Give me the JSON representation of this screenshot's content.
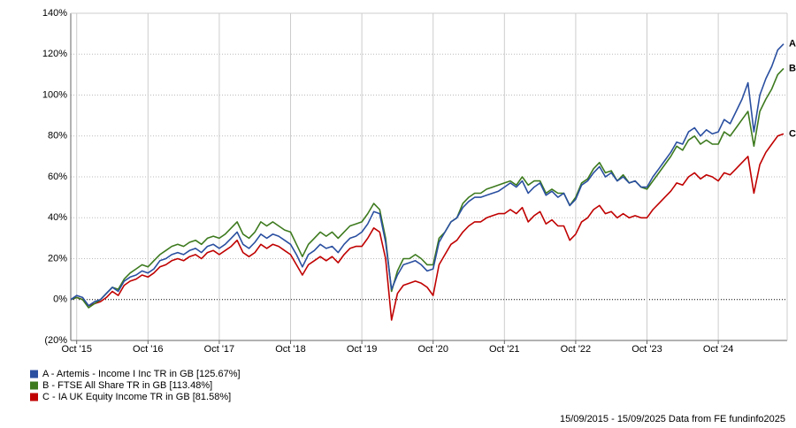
{
  "chart_data": {
    "type": "line",
    "categories": [
      null,
      "Oct '15",
      null,
      null,
      null,
      null,
      null,
      null,
      null,
      null,
      null,
      null,
      null,
      "Oct '16",
      null,
      null,
      null,
      null,
      null,
      null,
      null,
      null,
      null,
      null,
      null,
      "Oct '17",
      null,
      null,
      null,
      null,
      null,
      null,
      null,
      null,
      null,
      null,
      null,
      "Oct '18",
      null,
      null,
      null,
      null,
      null,
      null,
      null,
      null,
      null,
      null,
      null,
      "Oct '19",
      null,
      null,
      null,
      null,
      null,
      null,
      null,
      null,
      null,
      null,
      null,
      "Oct '20",
      null,
      null,
      null,
      null,
      null,
      null,
      null,
      null,
      null,
      null,
      null,
      "Oct '21",
      null,
      null,
      null,
      null,
      null,
      null,
      null,
      null,
      null,
      null,
      null,
      "Oct '22",
      null,
      null,
      null,
      null,
      null,
      null,
      null,
      null,
      null,
      null,
      null,
      "Oct '23",
      null,
      null,
      null,
      null,
      null,
      null,
      null,
      null,
      null,
      null,
      null,
      "Oct '24",
      null,
      null,
      null,
      null,
      null,
      null,
      null,
      null,
      null,
      null,
      null
    ],
    "series": [
      {
        "name": "A - Artemis - Income I Inc TR in GB [125.67%]",
        "tag": "A",
        "color": "#2a4fa0",
        "values": [
          0,
          2,
          1,
          -3,
          -1,
          0,
          3,
          6,
          4,
          9,
          11,
          12,
          14,
          13,
          15,
          19,
          20,
          22,
          23,
          22,
          24,
          25,
          23,
          26,
          27,
          25,
          27,
          30,
          33,
          27,
          25,
          28,
          32,
          30,
          32,
          31,
          29,
          27,
          22,
          16,
          22,
          24,
          27,
          25,
          26,
          23,
          27,
          30,
          31,
          33,
          37,
          43,
          42,
          28,
          5,
          12,
          17,
          18,
          19,
          17,
          14,
          15,
          28,
          33,
          38,
          40,
          45,
          48,
          50,
          50,
          51,
          52,
          53,
          55,
          57,
          55,
          58,
          52,
          55,
          57,
          51,
          53,
          50,
          52,
          46,
          49,
          56,
          58,
          62,
          65,
          60,
          62,
          58,
          60,
          57,
          58,
          55,
          55,
          60,
          64,
          68,
          72,
          77,
          76,
          82,
          84,
          80,
          83,
          81,
          82,
          88,
          86,
          92,
          98,
          106,
          82,
          100,
          108,
          114,
          122,
          125
        ]
      },
      {
        "name": "B - FTSE All Share TR in GB [113.48%]",
        "tag": "B",
        "color": "#3d7a1e",
        "values": [
          0,
          1,
          0,
          -4,
          -2,
          0,
          3,
          6,
          5,
          10,
          13,
          15,
          17,
          16,
          19,
          22,
          24,
          26,
          27,
          26,
          28,
          29,
          27,
          30,
          31,
          30,
          32,
          35,
          38,
          32,
          30,
          33,
          38,
          36,
          38,
          36,
          34,
          33,
          27,
          21,
          27,
          30,
          33,
          31,
          33,
          30,
          33,
          36,
          37,
          38,
          42,
          47,
          44,
          30,
          4,
          14,
          20,
          20,
          22,
          20,
          17,
          17,
          30,
          33,
          38,
          40,
          47,
          50,
          52,
          52,
          54,
          55,
          56,
          57,
          58,
          56,
          60,
          56,
          58,
          58,
          52,
          54,
          52,
          52,
          46,
          50,
          57,
          59,
          64,
          67,
          62,
          63,
          58,
          61,
          57,
          58,
          55,
          54,
          58,
          62,
          66,
          70,
          75,
          73,
          78,
          80,
          76,
          78,
          76,
          76,
          82,
          80,
          84,
          88,
          92,
          75,
          92,
          98,
          103,
          110,
          113
        ]
      },
      {
        "name": "C - IA UK Equity Income TR in GB [81.58%]",
        "tag": "C",
        "color": "#c00000",
        "values": [
          0,
          1,
          0,
          -3,
          -2,
          -1,
          1,
          4,
          2,
          7,
          9,
          10,
          12,
          11,
          13,
          16,
          17,
          19,
          20,
          19,
          21,
          22,
          20,
          23,
          24,
          22,
          24,
          26,
          29,
          23,
          21,
          23,
          27,
          25,
          27,
          26,
          24,
          22,
          17,
          12,
          17,
          19,
          21,
          19,
          21,
          18,
          22,
          25,
          26,
          26,
          30,
          35,
          33,
          20,
          -10,
          3,
          7,
          8,
          9,
          8,
          6,
          2,
          17,
          22,
          27,
          29,
          33,
          36,
          38,
          38,
          40,
          41,
          42,
          42,
          44,
          42,
          45,
          38,
          41,
          43,
          37,
          39,
          36,
          36,
          29,
          32,
          38,
          40,
          44,
          46,
          42,
          43,
          40,
          42,
          40,
          41,
          40,
          40,
          44,
          47,
          50,
          53,
          57,
          56,
          60,
          62,
          59,
          61,
          60,
          58,
          62,
          61,
          64,
          67,
          70,
          52,
          66,
          72,
          76,
          80,
          81
        ]
      }
    ],
    "ylim": [
      -20,
      140
    ],
    "yticks": [
      {
        "value": -20,
        "label": "(20%"
      },
      {
        "value": 0,
        "label": "0%"
      },
      {
        "value": 20,
        "label": "20%"
      },
      {
        "value": 40,
        "label": "40%"
      },
      {
        "value": 60,
        "label": "60%"
      },
      {
        "value": 80,
        "label": "80%"
      },
      {
        "value": 100,
        "label": "100%"
      },
      {
        "value": 120,
        "label": "120%"
      },
      {
        "value": 140,
        "label": "140%"
      }
    ],
    "grid": true,
    "note": "15/09/2015 - 15/09/2025 Data from FE fundinfo2025"
  }
}
